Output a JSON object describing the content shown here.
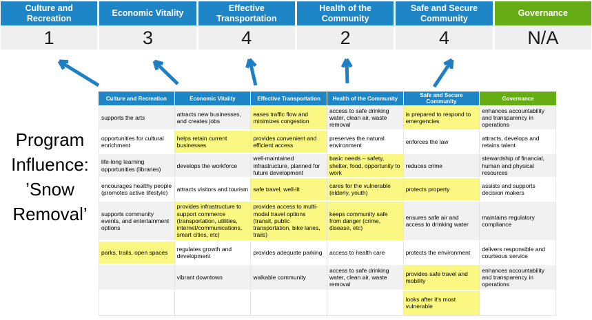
{
  "colors": {
    "band_blue": "#1E86C7",
    "band_green": "#66AC14",
    "score_bg": "#EFEFEF",
    "row_stripe": "#F1F1F1",
    "highlight_yellow": "#FAF782",
    "arrow_blue": "#1E7FC2",
    "text_dark": "#1A1A1A"
  },
  "program_title": "Program\nInfluence:\n’Snow\nRemoval’",
  "summary": {
    "columns": [
      {
        "label": "Culture and Recreation",
        "score": "1",
        "theme": "blue"
      },
      {
        "label": "Economic Vitality",
        "score": "3",
        "theme": "blue"
      },
      {
        "label": "Effective Transportation",
        "score": "4",
        "theme": "blue"
      },
      {
        "label": "Health of the Community",
        "score": "2",
        "theme": "blue"
      },
      {
        "label": "Safe and Secure Community",
        "score": "4",
        "theme": "blue"
      },
      {
        "label": "Governance",
        "score": "N/A",
        "theme": "green"
      }
    ]
  },
  "matrix": {
    "headers": [
      {
        "label": "Culture and Recreation",
        "theme": "blue"
      },
      {
        "label": "Economic Vitality",
        "theme": "blue"
      },
      {
        "label": "Effective Transportation",
        "theme": "blue"
      },
      {
        "label": "Health of the Community",
        "theme": "blue"
      },
      {
        "label": "Safe and Secure Community",
        "theme": "blue"
      },
      {
        "label": "Governance",
        "theme": "green"
      }
    ],
    "rows": [
      [
        {
          "text": "supports the arts"
        },
        {
          "text": "attracts new businesses, and creates jobs"
        },
        {
          "text": "eases traffic flow and minimizes congestion",
          "highlight": true
        },
        {
          "text": "access to safe drinking water, clean air, waste removal"
        },
        {
          "text": "is prepared to respond to emergencies",
          "highlight": true
        },
        {
          "text": "enhances accountability and transparency in operations"
        }
      ],
      [
        {
          "text": "opportunities for cultural enrichment"
        },
        {
          "text": "helps retain current businesses",
          "highlight": true
        },
        {
          "text": "provides convenient and efficient access",
          "highlight": true
        },
        {
          "text": "preserves the natural environment"
        },
        {
          "text": "enforces the law"
        },
        {
          "text": "attracts, develops and retains talent"
        }
      ],
      [
        {
          "text": "life-long learning opportunities (libraries)"
        },
        {
          "text": "develops the workforce"
        },
        {
          "text": "well-maintained infrastructure, planned for future development"
        },
        {
          "text": "basic needs – safety, shelter, food, opportunity to work",
          "highlight": true
        },
        {
          "text": "reduces crime"
        },
        {
          "text": "stewardship of financial, human and physical resources"
        }
      ],
      [
        {
          "text": "encourages healthy people (promotes active lifestyle)"
        },
        {
          "text": "attracts visitors and tourism"
        },
        {
          "text": "safe travel, well-lit",
          "highlight": true
        },
        {
          "text": "cares for the vulnerable (elderly, youth)",
          "highlight": true
        },
        {
          "text": "protects property",
          "highlight": true
        },
        {
          "text": "assists and supports decision makers"
        }
      ],
      [
        {
          "text": "supports community events, and entertainment options"
        },
        {
          "text": "provides infrastructure to support commerce (transportation, utilities, internet/communications, smart cities, etc)",
          "highlight": true
        },
        {
          "text": "provides access to multi-modal travel options (transit, public transportation, bike lanes, trails)",
          "highlight": true
        },
        {
          "text": "keeps community safe from danger (crime, disease, etc)",
          "highlight": true
        },
        {
          "text": "ensures safe air and access to drinking water"
        },
        {
          "text": "maintains regulatory compliance"
        }
      ],
      [
        {
          "text": "parks, trails, open spaces",
          "highlight": true
        },
        {
          "text": "regulates growth and development"
        },
        {
          "text": "provides adequate parking"
        },
        {
          "text": "access to health care"
        },
        {
          "text": "protects the environment"
        },
        {
          "text": "delivers responsible and courteous service"
        }
      ],
      [
        {
          "text": ""
        },
        {
          "text": "vibrant downtown"
        },
        {
          "text": "walkable community"
        },
        {
          "text": "access to safe drinking water, clean air, waste removal"
        },
        {
          "text": "provides safe travel and mobility",
          "highlight": true
        },
        {
          "text": "enhances accountability and transparency in operations"
        }
      ],
      [
        {
          "text": ""
        },
        {
          "text": ""
        },
        {
          "text": ""
        },
        {
          "text": ""
        },
        {
          "text": "looks after it's most vulnerable",
          "highlight": true
        },
        {
          "text": ""
        }
      ]
    ]
  }
}
